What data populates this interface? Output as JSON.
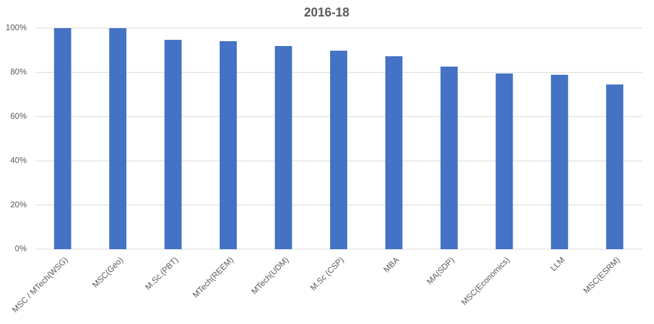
{
  "chart_data": {
    "type": "bar",
    "title": "2016-18",
    "categories": [
      "MSC / MTech(WSG)",
      "MSC(Geo)",
      "M.Sc.(PBT)",
      "MTech(REEM)",
      "MTech(UDM)",
      "M.Sc (CSP)",
      "MBA",
      "MA(SDP)",
      "MSC(Economics)",
      "LLM",
      "MSC(ESRM)"
    ],
    "values": [
      100,
      100,
      94.7,
      94.1,
      91.9,
      89.8,
      87.3,
      82.6,
      79.5,
      78.9,
      74.5
    ],
    "color": "#4472c4",
    "ylim": [
      0,
      100
    ],
    "yticks": [
      {
        "value": 0,
        "label": "0%"
      },
      {
        "value": 20,
        "label": "20%"
      },
      {
        "value": 40,
        "label": "40%"
      },
      {
        "value": 60,
        "label": "60%"
      },
      {
        "value": 80,
        "label": "80%"
      },
      {
        "value": 100,
        "label": "100%"
      }
    ],
    "grid": true
  }
}
